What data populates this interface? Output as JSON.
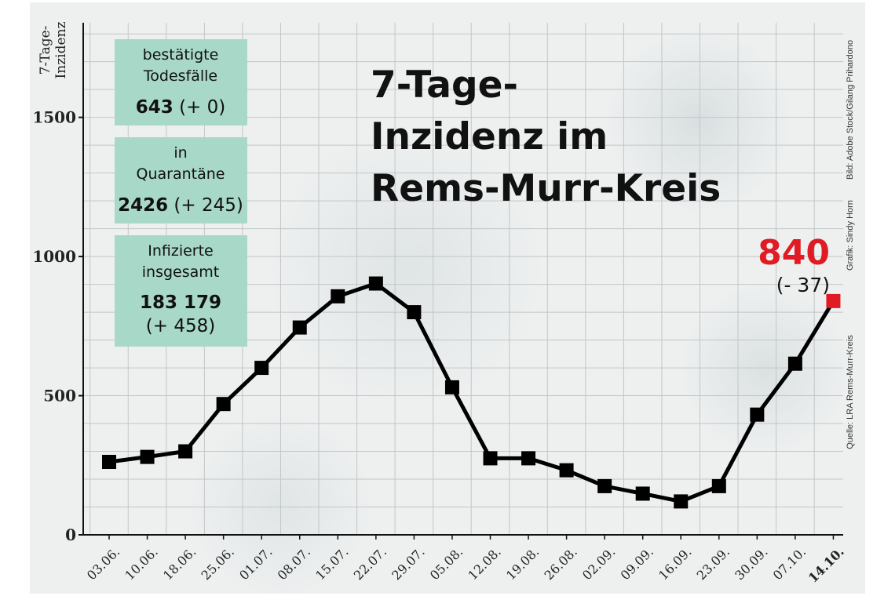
{
  "chart_data": {
    "type": "line",
    "title": "7-Tage-Inzidenz im Rems-Murr-Kreis",
    "title_lines": [
      "7-Tage-",
      "Inzidenz im",
      "Rems-Murr-Kreis"
    ],
    "ylabel_lines": [
      "7-Tage-",
      "Inzidenz"
    ],
    "xlabel": "",
    "categories": [
      "03.06.",
      "10.06.",
      "18.06.",
      "25.06.",
      "01.07.",
      "08.07.",
      "15.07.",
      "22.07.",
      "29.07.",
      "05.08.",
      "12.08.",
      "19.08.",
      "26.08.",
      "02.09.",
      "09.09.",
      "16.09.",
      "23.09.",
      "30.09.",
      "07.10.",
      "14.10."
    ],
    "values": [
      262,
      280,
      300,
      470,
      600,
      745,
      857,
      903,
      800,
      530,
      275,
      275,
      232,
      175,
      148,
      120,
      175,
      432,
      615,
      840
    ],
    "ylim": [
      0,
      1840
    ],
    "yticks": [
      0,
      500,
      1000,
      1500
    ],
    "yticks_labels": [
      "0",
      "500",
      "1000",
      "1500"
    ],
    "grid": true,
    "line_color": "#000000",
    "highlight_color": "#e01b24",
    "last_value_label": "840",
    "last_delta_label": "(- 37)"
  },
  "info_boxes": [
    {
      "label_lines": [
        "bestätigte",
        "Todesfälle"
      ],
      "value": "643",
      "delta": "(+ 0)",
      "delta_on_new_line": false
    },
    {
      "label_lines": [
        "in",
        "Quarantäne"
      ],
      "value": "2426",
      "delta": "(+ 245)",
      "delta_on_new_line": false
    },
    {
      "label_lines": [
        "Infizierte",
        "insgesamt"
      ],
      "value": "183 179",
      "delta": "(+ 458)",
      "delta_on_new_line": true
    }
  ],
  "box_color": "#a8d8c8",
  "credits": {
    "source": "Quelle: LRA Rems-Murr-Kreis",
    "graphic": "Grafik: Sindy Horn",
    "image": "Bild: Adobe Stock/Gilang Prihardono"
  }
}
